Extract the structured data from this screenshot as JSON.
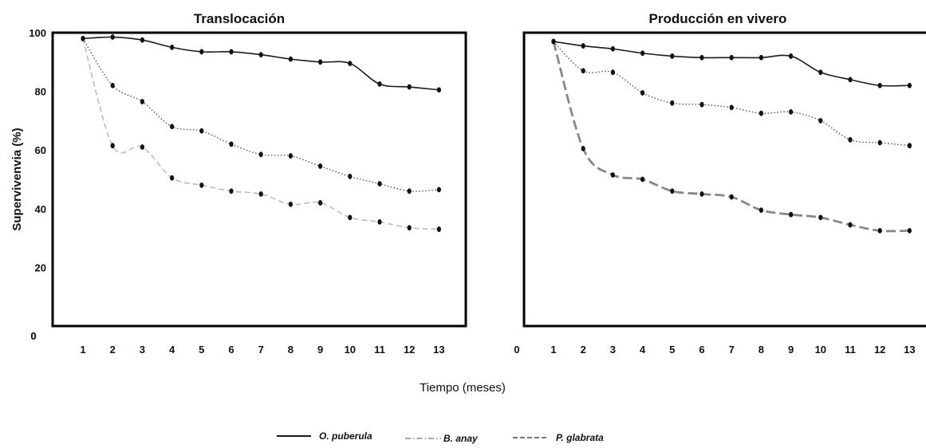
{
  "xlabel": "Tiempo (meses)",
  "ylabel": "Supervivenvia (%)",
  "legend": [
    {
      "label": "O. puberula"
    },
    {
      "label": "B. anay"
    },
    {
      "label": "P. glabrata"
    }
  ],
  "chart_data": [
    {
      "type": "line",
      "title": "Translocación",
      "x": [
        1,
        2,
        3,
        4,
        5,
        6,
        7,
        8,
        9,
        10,
        11,
        12,
        13
      ],
      "x_ticks": [
        "1",
        "2",
        "3",
        "4",
        "5",
        "6",
        "7",
        "8",
        "9",
        "10",
        "11",
        "12",
        "13"
      ],
      "x_origin_label": "0",
      "y_ticks": [
        "0",
        "20",
        "40",
        "60",
        "80",
        "100"
      ],
      "ylim": [
        0,
        100
      ],
      "grid": false,
      "series": [
        {
          "name": "O. puberula",
          "color": "#1a1a1a",
          "dash": "solid",
          "values": [
            98,
            98.5,
            97.5,
            95,
            93.5,
            93.5,
            92.5,
            91,
            90,
            89.5,
            82.5,
            81.5,
            80.5
          ]
        },
        {
          "name": "B. anay",
          "color": "#bdbdbd",
          "dash": "dashed",
          "values": [
            98,
            61.5,
            61,
            50.5,
            48,
            46,
            45,
            41.5,
            42,
            37,
            35.5,
            33.5,
            33
          ]
        },
        {
          "name": "P. glabrata",
          "color": "#555555",
          "dash": "dotted",
          "values": [
            98,
            82,
            76.5,
            68,
            66.5,
            62,
            58.5,
            58,
            54.5,
            51,
            48.5,
            46,
            46.5
          ]
        }
      ]
    },
    {
      "type": "line",
      "title": "Producción en vivero",
      "x": [
        1,
        2,
        3,
        4,
        5,
        6,
        7,
        8,
        9,
        10,
        11,
        12,
        13
      ],
      "x_ticks": [
        "1",
        "2",
        "3",
        "4",
        "5",
        "6",
        "7",
        "8",
        "9",
        "10",
        "11",
        "12",
        "13"
      ],
      "x_origin_label": "0",
      "ylim": [
        0,
        100
      ],
      "grid": false,
      "series": [
        {
          "name": "O. puberula",
          "color": "#1a1a1a",
          "dash": "solid",
          "values": [
            97,
            95.5,
            94.5,
            93,
            92,
            91.5,
            91.5,
            91.5,
            92,
            86.5,
            84,
            82,
            82
          ]
        },
        {
          "name": "B. anay",
          "color": "#555555",
          "dash": "dotted",
          "values": [
            97,
            87,
            86.5,
            79.5,
            76,
            75.5,
            74.5,
            72.5,
            73,
            70,
            63.5,
            62.5,
            61.5
          ]
        },
        {
          "name": "P. glabrata",
          "color": "#888888",
          "dash": "long-dash",
          "values": [
            97,
            60.5,
            51.5,
            50,
            46,
            45,
            44,
            39.5,
            38,
            37,
            34.5,
            32.5,
            32.5
          ]
        }
      ]
    }
  ]
}
